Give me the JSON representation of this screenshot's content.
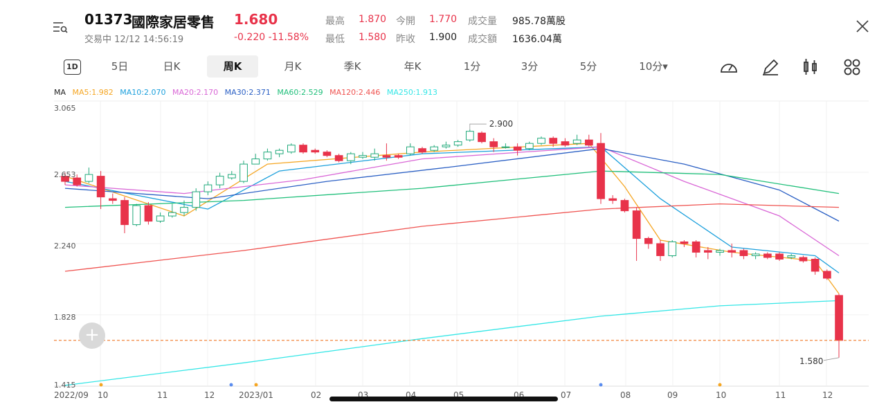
{
  "header": {
    "code": "01373",
    "name": "國際家居零售",
    "price": "1.680",
    "status": "交易中 12/12 14:56:19",
    "change": "-0.220 -11.58%",
    "stats": [
      {
        "label": "最高",
        "value": "1.870",
        "red": true
      },
      {
        "label": "今開",
        "value": "1.770",
        "red": true
      },
      {
        "label": "成交量",
        "value": "985.78萬股",
        "red": false
      },
      {
        "label": "最低",
        "value": "1.580",
        "red": true
      },
      {
        "label": "昨收",
        "value": "1.900",
        "red": false
      },
      {
        "label": "成交額",
        "value": "1636.04萬",
        "red": false
      }
    ]
  },
  "tabs": [
    "1D",
    "5日",
    "日K",
    "周K",
    "月K",
    "季K",
    "年K",
    "1分",
    "3分",
    "5分",
    "10分▾"
  ],
  "active_tab": "周K",
  "icons": {
    "menu": "menu-search-icon",
    "close": "close-icon",
    "tools": [
      "gauge-icon",
      "pen-icon",
      "candle-icon",
      "grid-icon"
    ],
    "zoom": "plus-icon"
  },
  "ma_legend": [
    {
      "label": "MA",
      "color": "#222222"
    },
    {
      "label": "MA5:1.982",
      "color": "#f5a623"
    },
    {
      "label": "MA10:2.070",
      "color": "#1a9fdc"
    },
    {
      "label": "MA20:2.170",
      "color": "#d966d6"
    },
    {
      "label": "MA30:2.371",
      "color": "#2a5fc4"
    },
    {
      "label": "MA60:2.529",
      "color": "#1fbf7a"
    },
    {
      "label": "MA120:2.446",
      "color": "#ef5350"
    },
    {
      "label": "MA250:1.913",
      "color": "#33e6e6"
    }
  ],
  "colors": {
    "up": "#1fa97a",
    "down": "#e8334a",
    "ref_line": "#f07a2a"
  },
  "chart_data": {
    "type": "candlestick",
    "ylim": [
      1.415,
      3.065
    ],
    "y_ticks": [
      "3.065",
      "2.653",
      "2.240",
      "1.828",
      "1.415"
    ],
    "x_ticks": [
      "2022/09",
      "10",
      "11",
      "12",
      "2023/01",
      "02",
      "03",
      "04",
      "05",
      "06",
      "07",
      "08",
      "09",
      "10",
      "11",
      "12"
    ],
    "max_label": "2.900",
    "min_label": "1.580",
    "ref_price": 1.68,
    "candles": [
      [
        2.63,
        2.6,
        2.65,
        2.58
      ],
      [
        2.62,
        2.58,
        2.64,
        2.57
      ],
      [
        2.6,
        2.64,
        2.68,
        2.59
      ],
      [
        2.63,
        2.51,
        2.66,
        2.44
      ],
      [
        2.5,
        2.49,
        2.53,
        2.47
      ],
      [
        2.49,
        2.35,
        2.51,
        2.3
      ],
      [
        2.35,
        2.46,
        2.47,
        2.34
      ],
      [
        2.46,
        2.37,
        2.48,
        2.35
      ],
      [
        2.37,
        2.4,
        2.42,
        2.36
      ],
      [
        2.4,
        2.42,
        2.47,
        2.39
      ],
      [
        2.42,
        2.45,
        2.49,
        2.4
      ],
      [
        2.45,
        2.54,
        2.56,
        2.43
      ],
      [
        2.54,
        2.58,
        2.6,
        2.52
      ],
      [
        2.58,
        2.63,
        2.65,
        2.56
      ],
      [
        2.62,
        2.64,
        2.66,
        2.61
      ],
      [
        2.6,
        2.7,
        2.72,
        2.59
      ],
      [
        2.7,
        2.73,
        2.76,
        2.7
      ],
      [
        2.73,
        2.77,
        2.79,
        2.72
      ],
      [
        2.76,
        2.78,
        2.79,
        2.74
      ],
      [
        2.77,
        2.81,
        2.82,
        2.76
      ],
      [
        2.81,
        2.77,
        2.82,
        2.76
      ],
      [
        2.78,
        2.77,
        2.79,
        2.76
      ],
      [
        2.77,
        2.75,
        2.78,
        2.74
      ],
      [
        2.75,
        2.72,
        2.76,
        2.71
      ],
      [
        2.72,
        2.76,
        2.77,
        2.7
      ],
      [
        2.74,
        2.75,
        2.77,
        2.73
      ],
      [
        2.74,
        2.76,
        2.79,
        2.72
      ],
      [
        2.75,
        2.74,
        2.82,
        2.72
      ],
      [
        2.75,
        2.74,
        2.76,
        2.73
      ],
      [
        2.76,
        2.8,
        2.82,
        2.75
      ],
      [
        2.79,
        2.77,
        2.8,
        2.76
      ],
      [
        2.78,
        2.8,
        2.81,
        2.77
      ],
      [
        2.8,
        2.81,
        2.83,
        2.79
      ],
      [
        2.81,
        2.83,
        2.84,
        2.8
      ],
      [
        2.84,
        2.89,
        2.9,
        2.83
      ],
      [
        2.88,
        2.83,
        2.89,
        2.82
      ],
      [
        2.83,
        2.8,
        2.85,
        2.77
      ],
      [
        2.8,
        2.8,
        2.82,
        2.79
      ],
      [
        2.8,
        2.78,
        2.82,
        2.75
      ],
      [
        2.79,
        2.82,
        2.83,
        2.78
      ],
      [
        2.82,
        2.85,
        2.86,
        2.81
      ],
      [
        2.85,
        2.82,
        2.86,
        2.8
      ],
      [
        2.83,
        2.81,
        2.85,
        2.8
      ],
      [
        2.82,
        2.84,
        2.87,
        2.81
      ],
      [
        2.84,
        2.81,
        2.87,
        2.8
      ],
      [
        2.82,
        2.5,
        2.88,
        2.47
      ],
      [
        2.5,
        2.49,
        2.52,
        2.47
      ],
      [
        2.49,
        2.43,
        2.5,
        2.42
      ],
      [
        2.43,
        2.27,
        2.45,
        2.14
      ],
      [
        2.27,
        2.24,
        2.28,
        2.21
      ],
      [
        2.24,
        2.17,
        2.26,
        2.14
      ],
      [
        2.17,
        2.25,
        2.26,
        2.16
      ],
      [
        2.25,
        2.24,
        2.26,
        2.22
      ],
      [
        2.25,
        2.19,
        2.26,
        2.16
      ],
      [
        2.2,
        2.19,
        2.22,
        2.15
      ],
      [
        2.19,
        2.2,
        2.21,
        2.17
      ],
      [
        2.2,
        2.19,
        2.24,
        2.16
      ],
      [
        2.2,
        2.17,
        2.21,
        2.15
      ],
      [
        2.17,
        2.18,
        2.19,
        2.15
      ],
      [
        2.18,
        2.16,
        2.19,
        2.15
      ],
      [
        2.18,
        2.15,
        2.19,
        2.14
      ],
      [
        2.16,
        2.17,
        2.18,
        2.15
      ],
      [
        2.16,
        2.14,
        2.17,
        2.13
      ],
      [
        2.15,
        2.08,
        2.16,
        2.06
      ],
      [
        2.08,
        2.04,
        2.09,
        2.03
      ],
      [
        1.94,
        1.68,
        1.95,
        1.58
      ]
    ],
    "ma_lines": {
      "MA5": [
        [
          0,
          2.63
        ],
        [
          10,
          2.4
        ],
        [
          17,
          2.7
        ],
        [
          30,
          2.77
        ],
        [
          44,
          2.82
        ],
        [
          47,
          2.57
        ],
        [
          50,
          2.26
        ],
        [
          56,
          2.19
        ],
        [
          63,
          2.14
        ],
        [
          65,
          1.95
        ]
      ],
      "MA10": [
        [
          0,
          2.6
        ],
        [
          12,
          2.44
        ],
        [
          18,
          2.66
        ],
        [
          30,
          2.76
        ],
        [
          45,
          2.8
        ],
        [
          50,
          2.5
        ],
        [
          56,
          2.22
        ],
        [
          63,
          2.17
        ],
        [
          65,
          2.07
        ]
      ],
      "MA20": [
        [
          0,
          2.58
        ],
        [
          10,
          2.53
        ],
        [
          20,
          2.61
        ],
        [
          30,
          2.73
        ],
        [
          45,
          2.8
        ],
        [
          52,
          2.6
        ],
        [
          60,
          2.4
        ],
        [
          65,
          2.17
        ]
      ],
      "MA30": [
        [
          0,
          2.56
        ],
        [
          12,
          2.5
        ],
        [
          22,
          2.6
        ],
        [
          32,
          2.68
        ],
        [
          45,
          2.79
        ],
        [
          52,
          2.7
        ],
        [
          60,
          2.55
        ],
        [
          65,
          2.37
        ]
      ],
      "MA60": [
        [
          0,
          2.45
        ],
        [
          15,
          2.49
        ],
        [
          30,
          2.56
        ],
        [
          45,
          2.66
        ],
        [
          55,
          2.64
        ],
        [
          65,
          2.53
        ]
      ],
      "MA120": [
        [
          0,
          2.08
        ],
        [
          15,
          2.2
        ],
        [
          30,
          2.34
        ],
        [
          45,
          2.44
        ],
        [
          55,
          2.47
        ],
        [
          65,
          2.45
        ]
      ],
      "MA250": [
        [
          0,
          1.42
        ],
        [
          15,
          1.55
        ],
        [
          30,
          1.69
        ],
        [
          45,
          1.82
        ],
        [
          55,
          1.88
        ],
        [
          65,
          1.91
        ]
      ]
    }
  }
}
